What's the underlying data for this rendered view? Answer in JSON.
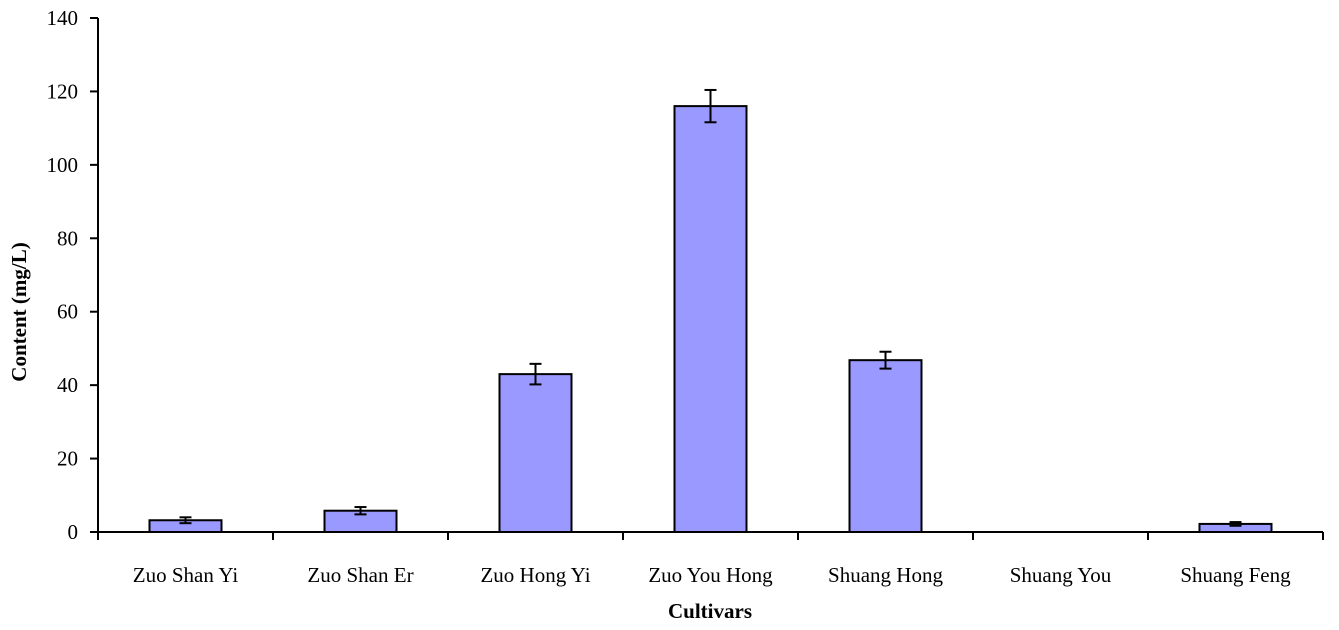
{
  "chart_data": {
    "type": "bar",
    "title": "",
    "xlabel": "Cultivars",
    "ylabel": "Content (mg/L)",
    "categories": [
      "Zuo Shan Yi",
      "Zuo Shan Er",
      "Zuo Hong Yi",
      "Zuo You Hong",
      "Shuang Hong",
      "Shuang You",
      "Shuang Feng"
    ],
    "values": [
      3.2,
      5.8,
      43.0,
      116.0,
      46.8,
      0,
      2.2
    ],
    "errors": [
      0.8,
      1.0,
      2.8,
      4.4,
      2.3,
      0,
      0.5
    ],
    "ylim": [
      0,
      140
    ],
    "yticks": [
      0,
      20,
      40,
      60,
      80,
      100,
      120,
      140
    ],
    "grid": false,
    "legend": "none",
    "bar_color": "#9999ff",
    "bar_edge_color": "#000000"
  }
}
